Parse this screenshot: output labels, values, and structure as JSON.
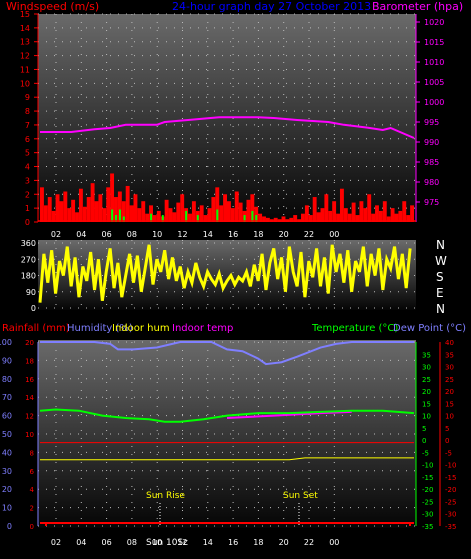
{
  "header": {
    "windspeed_label": "Windspeed (m/s)",
    "title": "24-hour graph day  27 October 2013",
    "barometer_label": "Barometer (hpa)"
  },
  "legend": {
    "rainfall": "Rainfall (mm)",
    "humidity": "Humidity (%)",
    "indoor_hum": "Indoor hum",
    "indoor_temp": "Indoor temp",
    "temperature": "Temperature (°C)",
    "dew_point": "Dew Point (°C)"
  },
  "annotations": {
    "sunrise": "Sun Rise",
    "sunset": "Sun Set",
    "overlap": "Sun 10Sc"
  },
  "colors": {
    "wind": "#ff0000",
    "gust": "#00ff00",
    "barometer": "#ff00ff",
    "direction": "#ffff00",
    "humidity": "#7f7fff",
    "temperature": "#00ff00",
    "dew_point": "#ff0000",
    "indoor_hum": "#ffff00",
    "indoor_temp": "#ff00ff",
    "rainfall": "#ff0000"
  },
  "chart_data": [
    {
      "type": "bar",
      "title": "24-hour graph day  27 October 2013",
      "ylabel": "Windspeed (m/s)",
      "y2label": "Barometer (hpa)",
      "ylim": [
        0,
        15
      ],
      "y2lim": [
        970,
        1022
      ],
      "x_ticks": [
        "02",
        "04",
        "06",
        "08",
        "10",
        "12",
        "14",
        "16",
        "18",
        "20",
        "22",
        "00"
      ],
      "y_ticks": [
        "0",
        "1",
        "2",
        "3",
        "4",
        "5",
        "6",
        "7",
        "8",
        "9",
        "10",
        "11",
        "12",
        "13",
        "14",
        "15"
      ],
      "y2_ticks": [
        "975",
        "980",
        "985",
        "990",
        "995",
        "1000",
        "1005",
        "1010",
        "1015",
        "1020"
      ],
      "wind_series": [
        [
          0,
          2.5
        ],
        [
          1,
          1.2
        ],
        [
          2,
          1.8
        ],
        [
          3,
          0.8
        ],
        [
          4,
          2.0
        ],
        [
          5,
          1.5
        ],
        [
          6,
          2.2
        ],
        [
          7,
          1.0
        ],
        [
          8,
          1.6
        ],
        [
          9,
          0.7
        ],
        [
          10,
          2.4
        ],
        [
          11,
          1.1
        ],
        [
          12,
          1.8
        ],
        [
          13,
          2.8
        ],
        [
          14,
          1.5
        ],
        [
          15,
          2.0
        ],
        [
          16,
          1.0
        ],
        [
          17,
          2.5
        ],
        [
          18,
          3.5
        ],
        [
          19,
          1.8
        ],
        [
          20,
          2.2
        ],
        [
          21,
          1.5
        ],
        [
          22,
          2.6
        ],
        [
          23,
          1.2
        ],
        [
          24,
          2.0
        ],
        [
          25,
          1.0
        ],
        [
          26,
          1.5
        ],
        [
          27,
          0.6
        ],
        [
          28,
          1.2
        ],
        [
          29,
          0.5
        ],
        [
          30,
          0.8
        ],
        [
          31,
          0.4
        ],
        [
          32,
          1.6
        ],
        [
          33,
          1.0
        ],
        [
          34,
          0.7
        ],
        [
          35,
          1.4
        ],
        [
          36,
          2.0
        ],
        [
          37,
          1.0
        ],
        [
          38,
          0.6
        ],
        [
          39,
          1.5
        ],
        [
          40,
          0.8
        ],
        [
          41,
          1.2
        ],
        [
          42,
          0.5
        ],
        [
          43,
          1.0
        ],
        [
          44,
          1.8
        ],
        [
          45,
          2.5
        ],
        [
          46,
          1.2
        ],
        [
          47,
          2.0
        ],
        [
          48,
          1.5
        ],
        [
          49,
          1.0
        ],
        [
          50,
          2.2
        ],
        [
          51,
          1.4
        ],
        [
          52,
          0.8
        ],
        [
          53,
          1.6
        ],
        [
          54,
          2.0
        ],
        [
          55,
          1.1
        ],
        [
          56,
          0.6
        ],
        [
          57,
          0.4
        ],
        [
          58,
          0.3
        ],
        [
          59,
          0.2
        ],
        [
          60,
          0.3
        ],
        [
          61,
          0.2
        ],
        [
          62,
          0.4
        ],
        [
          63,
          0.2
        ],
        [
          64,
          0.3
        ],
        [
          65,
          0.5
        ],
        [
          66,
          0.2
        ],
        [
          67,
          0.6
        ],
        [
          68,
          1.2
        ],
        [
          69,
          0.5
        ],
        [
          70,
          1.8
        ],
        [
          71,
          0.7
        ],
        [
          72,
          1.0
        ],
        [
          73,
          2.0
        ],
        [
          74,
          0.8
        ],
        [
          75,
          1.5
        ],
        [
          76,
          0.6
        ],
        [
          77,
          2.4
        ],
        [
          78,
          1.0
        ],
        [
          79,
          0.6
        ],
        [
          80,
          1.4
        ],
        [
          81,
          0.5
        ],
        [
          82,
          1.5
        ],
        [
          83,
          1.0
        ],
        [
          84,
          2.0
        ],
        [
          85,
          0.6
        ],
        [
          86,
          1.2
        ],
        [
          87,
          0.8
        ],
        [
          88,
          1.5
        ],
        [
          89,
          0.4
        ],
        [
          90,
          1.0
        ],
        [
          91,
          0.6
        ],
        [
          92,
          0.8
        ],
        [
          93,
          1.5
        ],
        [
          94,
          0.5
        ],
        [
          95,
          1.2
        ]
      ],
      "gust_series": [
        [
          18,
          0.9
        ],
        [
          19,
          0.5
        ],
        [
          20,
          0.9
        ],
        [
          21,
          0.4
        ],
        [
          28,
          0.6
        ],
        [
          31,
          0.5
        ],
        [
          37,
          0.8
        ],
        [
          40,
          0.5
        ],
        [
          45,
          0.9
        ],
        [
          52,
          0.5
        ],
        [
          54,
          0.8
        ],
        [
          55,
          0.5
        ]
      ],
      "barometer_series": [
        [
          0,
          992.5
        ],
        [
          8,
          992.5
        ],
        [
          14,
          993.2
        ],
        [
          18,
          993.5
        ],
        [
          22,
          994.3
        ],
        [
          30,
          994.3
        ],
        [
          32,
          995.0
        ],
        [
          38,
          995.5
        ],
        [
          46,
          996.2
        ],
        [
          56,
          996.2
        ],
        [
          60,
          996.0
        ],
        [
          66,
          995.5
        ],
        [
          74,
          995.0
        ],
        [
          78,
          994.3
        ],
        [
          84,
          993.6
        ],
        [
          88,
          993.0
        ],
        [
          90,
          993.5
        ],
        [
          96,
          991.0
        ]
      ]
    },
    {
      "type": "line",
      "ylabel": "",
      "ylim": [
        0,
        360
      ],
      "y_ticks": [
        "0",
        "90",
        "180",
        "270",
        "360"
      ],
      "y2_ticks": [
        "N",
        "W",
        "S",
        "E",
        "N"
      ],
      "direction_series": [
        [
          0,
          30
        ],
        [
          1,
          300
        ],
        [
          2,
          140
        ],
        [
          3,
          320
        ],
        [
          4,
          80
        ],
        [
          5,
          260
        ],
        [
          6,
          180
        ],
        [
          7,
          340
        ],
        [
          8,
          120
        ],
        [
          9,
          280
        ],
        [
          10,
          60
        ],
        [
          11,
          230
        ],
        [
          12,
          150
        ],
        [
          13,
          310
        ],
        [
          14,
          100
        ],
        [
          15,
          270
        ],
        [
          16,
          40
        ],
        [
          17,
          200
        ],
        [
          18,
          330
        ],
        [
          19,
          110
        ],
        [
          20,
          250
        ],
        [
          21,
          60
        ],
        [
          22,
          180
        ],
        [
          23,
          300
        ],
        [
          24,
          140
        ],
        [
          25,
          290
        ],
        [
          26,
          90
        ],
        [
          27,
          220
        ],
        [
          28,
          350
        ],
        [
          29,
          130
        ],
        [
          30,
          270
        ],
        [
          31,
          200
        ],
        [
          32,
          320
        ],
        [
          33,
          160
        ],
        [
          34,
          280
        ],
        [
          35,
          150
        ],
        [
          36,
          230
        ],
        [
          37,
          110
        ],
        [
          38,
          200
        ],
        [
          39,
          140
        ],
        [
          40,
          250
        ],
        [
          41,
          170
        ],
        [
          42,
          120
        ],
        [
          43,
          200
        ],
        [
          44,
          160
        ],
        [
          45,
          130
        ],
        [
          46,
          190
        ],
        [
          47,
          110
        ],
        [
          48,
          150
        ],
        [
          49,
          180
        ],
        [
          50,
          130
        ],
        [
          51,
          170
        ],
        [
          52,
          150
        ],
        [
          53,
          200
        ],
        [
          54,
          120
        ],
        [
          55,
          240
        ],
        [
          56,
          150
        ],
        [
          57,
          300
        ],
        [
          58,
          100
        ],
        [
          59,
          250
        ],
        [
          60,
          330
        ],
        [
          61,
          160
        ],
        [
          62,
          280
        ],
        [
          63,
          90
        ],
        [
          64,
          340
        ],
        [
          65,
          200
        ],
        [
          66,
          120
        ],
        [
          67,
          310
        ],
        [
          68,
          60
        ],
        [
          69,
          260
        ],
        [
          70,
          170
        ],
        [
          71,
          330
        ],
        [
          72,
          120
        ],
        [
          73,
          280
        ],
        [
          74,
          80
        ],
        [
          75,
          350
        ],
        [
          76,
          200
        ],
        [
          77,
          300
        ],
        [
          78,
          140
        ],
        [
          79,
          320
        ],
        [
          80,
          90
        ],
        [
          81,
          260
        ],
        [
          82,
          200
        ],
        [
          83,
          340
        ],
        [
          84,
          120
        ],
        [
          85,
          300
        ],
        [
          86,
          180
        ],
        [
          87,
          330
        ],
        [
          88,
          100
        ],
        [
          89,
          270
        ],
        [
          90,
          220
        ],
        [
          91,
          340
        ],
        [
          92,
          160
        ],
        [
          93,
          300
        ],
        [
          94,
          110
        ],
        [
          95,
          330
        ]
      ]
    },
    {
      "type": "line",
      "ylabel": "Temperature (°C)",
      "ylim": [
        -35,
        40
      ],
      "x_ticks": [
        "02",
        "04",
        "06",
        "08",
        "10",
        "12",
        "14",
        "16",
        "18",
        "20",
        "22",
        "00"
      ],
      "left_ticks_humidity": [
        "100",
        "90",
        "80",
        "70",
        "60",
        "50",
        "40",
        "30",
        "20",
        "10",
        "0"
      ],
      "left_ticks_rain": [
        "20",
        "18",
        "16",
        "14",
        "12",
        "10",
        "8",
        "6",
        "4",
        "2",
        "0"
      ],
      "right_ticks_temp": [
        "35",
        "30",
        "25",
        "20",
        "15",
        "10",
        "5",
        "0",
        "-5",
        "-10",
        "-15",
        "-20",
        "-25",
        "-30",
        "-35"
      ],
      "right_ticks_dew": [
        "40",
        "35",
        "30",
        "25",
        "20",
        "15",
        "10",
        "5",
        "0",
        "-5",
        "-10",
        "-15",
        "-20",
        "-25",
        "-30",
        "-35"
      ],
      "humidity_series": [
        [
          0,
          100
        ],
        [
          14,
          100
        ],
        [
          18,
          99
        ],
        [
          20,
          96
        ],
        [
          24,
          96
        ],
        [
          30,
          97
        ],
        [
          36,
          100
        ],
        [
          44,
          100
        ],
        [
          48,
          96
        ],
        [
          52,
          95
        ],
        [
          56,
          91
        ],
        [
          58,
          88
        ],
        [
          62,
          89
        ],
        [
          66,
          92
        ],
        [
          72,
          97
        ],
        [
          76,
          99
        ],
        [
          80,
          100
        ],
        [
          96,
          100
        ]
      ],
      "temperature_series": [
        [
          0,
          12
        ],
        [
          4,
          12.5
        ],
        [
          10,
          12
        ],
        [
          16,
          10
        ],
        [
          22,
          9
        ],
        [
          28,
          8.5
        ],
        [
          32,
          7.5
        ],
        [
          36,
          7.5
        ],
        [
          42,
          8.5
        ],
        [
          48,
          10
        ],
        [
          56,
          11
        ],
        [
          64,
          11
        ],
        [
          72,
          11.5
        ],
        [
          80,
          12
        ],
        [
          88,
          12
        ],
        [
          96,
          11
        ]
      ],
      "dew_point_series": [
        [
          0,
          -1
        ],
        [
          96,
          -1
        ]
      ],
      "indoor_temp_series": [
        [
          48,
          9
        ],
        [
          60,
          10
        ],
        [
          72,
          11
        ],
        [
          80,
          11.5
        ]
      ],
      "indoor_hum_series": [
        [
          0,
          36
        ],
        [
          64,
          36
        ],
        [
          68,
          37
        ],
        [
          96,
          37
        ]
      ],
      "rainfall_series": [
        [
          0,
          0
        ],
        [
          96,
          0
        ]
      ]
    }
  ]
}
